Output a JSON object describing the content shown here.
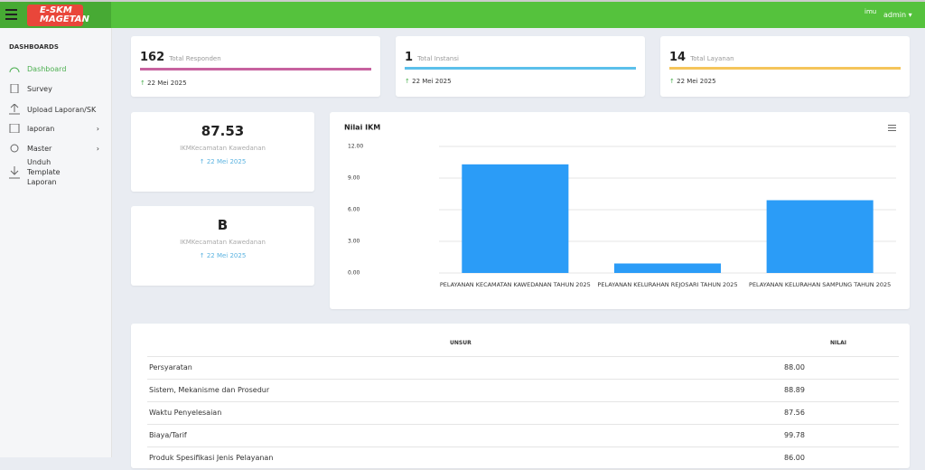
{
  "header": {
    "logo": "E-SKM MAGETAN",
    "user_icon": "imu",
    "user": "admin"
  },
  "sidebar": {
    "section": "DASHBOARDS",
    "items": [
      "Dashboard",
      "Survey",
      "Upload Laporan/SK",
      "laporan",
      "Master",
      "Unduh Template Laporan"
    ]
  },
  "stats": [
    {
      "value": 162,
      "label": "Total Responden",
      "date": "22 Mei 2025"
    },
    {
      "value": 1,
      "label": "Total Instansi",
      "date": "22 Mei 2025"
    },
    {
      "value": 14,
      "label": "Total Layanan",
      "date": "22 Mei 2025"
    }
  ],
  "ikm_cards": [
    {
      "value": 87.53,
      "label": "IKMKecamatan Kawedanan",
      "date": "22 Mei 2025"
    },
    {
      "value": "B",
      "label": "IKMKecamatan Kawedanan",
      "date": "22 Mei 2025"
    }
  ],
  "chart_data": {
    "type": "bar",
    "title": "Nilai IKM",
    "color": "#2b9cf7",
    "grid": true,
    "categories": [
      "PELAYANAN KECAMATAN KAWEDANAN TAHUN 2025",
      "PELAYANAN KELURAHAN REJOSARI TAHUN 2025",
      "PELAYANAN KELURAHAN SAMPUNG TAHUN 2025"
    ],
    "values": [
      10.3,
      0.9,
      6.9
    ],
    "ylim": [
      0,
      12
    ],
    "yticks": [
      {
        "value": 0,
        "label": "0.00"
      },
      {
        "value": 3,
        "label": "3.00"
      },
      {
        "value": 6,
        "label": "6.00"
      },
      {
        "value": 9,
        "label": "9.00"
      },
      {
        "value": 12,
        "label": "12.00"
      }
    ]
  },
  "table": {
    "header": [
      "UNSUR",
      "NILAI"
    ],
    "rows": [
      [
        "Persyaratan",
        "88.00"
      ],
      [
        "Sistem, Mekanisme dan Prosedur",
        "88.89"
      ],
      [
        "Waktu Penyelesaian",
        "87.56"
      ],
      [
        "Biaya/Tarif",
        "99.78"
      ],
      [
        "Produk Spesifikasi Jenis Pelayanan",
        "86.00"
      ]
    ]
  }
}
